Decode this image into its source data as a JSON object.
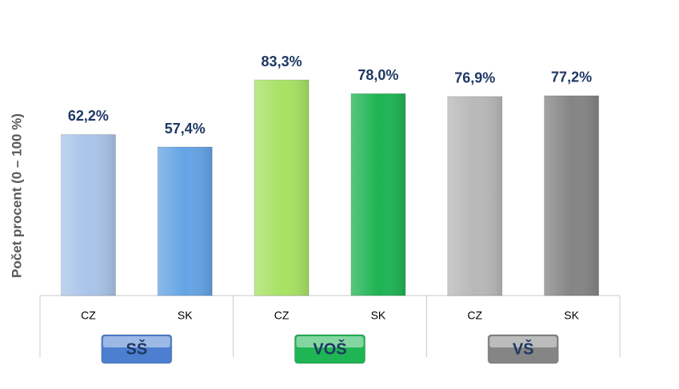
{
  "chart_data": {
    "type": "bar",
    "y_label": "Počet procent  (0 – 100 %)",
    "categories": [
      "CZ",
      "SK",
      "CZ",
      "SK",
      "CZ",
      "SK"
    ],
    "values": [
      62.2,
      57.4,
      83.3,
      78.0,
      76.9,
      77.2
    ],
    "value_labels": [
      "62,2%",
      "57,4%",
      "83,3%",
      "78,0%",
      "76,9%",
      "77,2%"
    ],
    "colors": [
      "#a9c4e8",
      "#64a4e4",
      "#a8e264",
      "#1fb454",
      "#b8b8b8",
      "#858585"
    ],
    "groups": [
      "SŠ",
      "VOŠ",
      "VŠ"
    ],
    "group_colors": [
      "#4c7fd0",
      "#1fb454",
      "#858585"
    ],
    "ylim": [
      0,
      100
    ]
  }
}
